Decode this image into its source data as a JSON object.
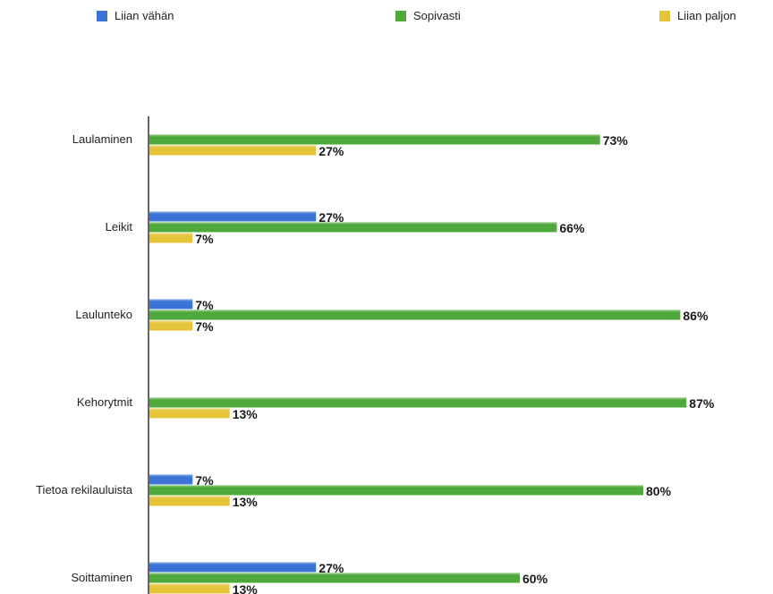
{
  "chart_data": {
    "type": "bar",
    "orientation": "horizontal",
    "legend_position": "top",
    "grid": false,
    "xlim": [
      0,
      100
    ],
    "categories": [
      "Laulaminen",
      "Leikit",
      "Laulunteko",
      "Kehorytmit",
      "Tietoa rekilauluista",
      "Soittaminen"
    ],
    "series": [
      {
        "name": "Liian vähän",
        "color": "#3b74d6",
        "values": [
          null,
          27,
          7,
          null,
          7,
          27
        ]
      },
      {
        "name": "Sopivasti",
        "color": "#4ea83a",
        "values": [
          73,
          66,
          86,
          87,
          80,
          60
        ]
      },
      {
        "name": "Liian paljon",
        "color": "#e5c43a",
        "values": [
          27,
          7,
          7,
          13,
          13,
          13
        ]
      }
    ],
    "value_suffix": "%"
  }
}
